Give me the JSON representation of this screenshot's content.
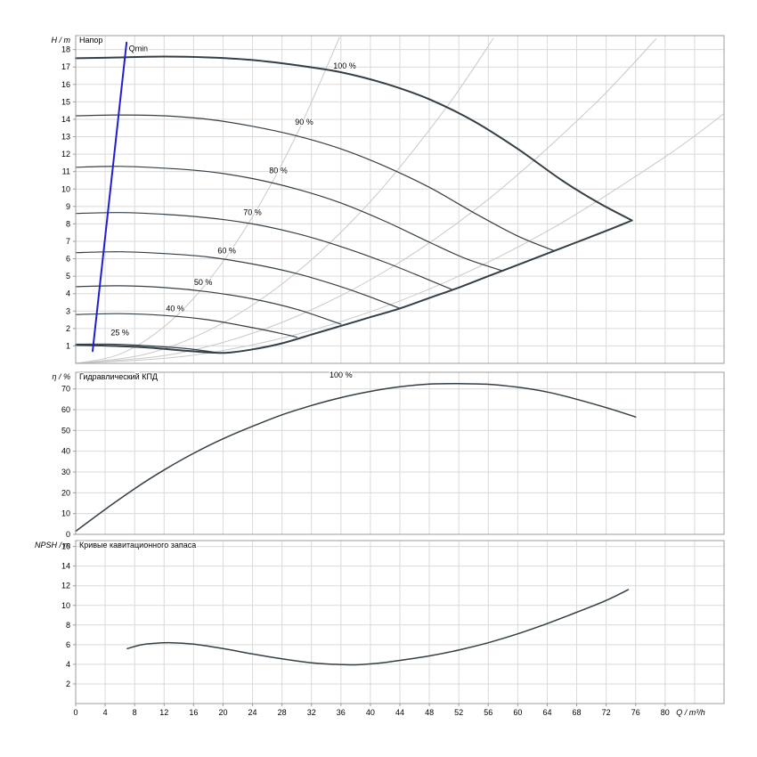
{
  "colors": {
    "curve": "#333f47",
    "grid": "#dadada",
    "frame": "#9b9b9b",
    "guide": "#c9c9c9",
    "qmin": "#1f1fd0",
    "text": "#000000"
  },
  "axis": {
    "xlim": [
      0,
      88
    ],
    "x_ticks": [
      0,
      4,
      8,
      12,
      16,
      20,
      24,
      28,
      32,
      36,
      40,
      44,
      48,
      52,
      56,
      60,
      64,
      68,
      72,
      76,
      80
    ],
    "x_grid_extra": [
      84,
      88
    ],
    "x_label": "Q / m³/h",
    "x_label_pos": 81.5
  },
  "chart_data": [
    {
      "id": "head",
      "type": "line",
      "title": "Напор",
      "ylabel": "H / m",
      "ylim": [
        0,
        18.8
      ],
      "yticks": [
        1,
        2,
        3,
        4,
        5,
        6,
        7,
        8,
        9,
        10,
        11,
        12,
        13,
        14,
        15,
        16,
        17,
        18
      ],
      "guides": [
        [
          [
            0,
            0
          ],
          [
            6,
            0.53
          ],
          [
            12,
            2.1
          ],
          [
            18,
            4.73
          ],
          [
            24,
            8.41
          ],
          [
            30,
            13.14
          ],
          [
            35.8,
            18.7
          ]
        ],
        [
          [
            0,
            0
          ],
          [
            10,
            0.58
          ],
          [
            20,
            2.32
          ],
          [
            30,
            5.22
          ],
          [
            40,
            9.28
          ],
          [
            50,
            14.5
          ],
          [
            56.7,
            18.65
          ]
        ],
        [
          [
            0,
            0
          ],
          [
            14,
            0.59
          ],
          [
            28,
            2.35
          ],
          [
            42,
            5.29
          ],
          [
            56,
            9.41
          ],
          [
            70,
            14.7
          ],
          [
            78.8,
            18.63
          ]
        ],
        [
          [
            0,
            0
          ],
          [
            16,
            0.47
          ],
          [
            32,
            1.89
          ],
          [
            48,
            4.26
          ],
          [
            64,
            7.58
          ],
          [
            80,
            11.84
          ],
          [
            88,
            14.33
          ]
        ]
      ],
      "series": [
        {
          "name": "curve-speed-100",
          "width": 2,
          "points": [
            [
              0,
              17.5
            ],
            [
              6,
              17.55
            ],
            [
              12,
              17.6
            ],
            [
              18,
              17.55
            ],
            [
              24,
              17.4
            ],
            [
              30,
              17.1
            ],
            [
              36,
              16.7
            ],
            [
              42,
              16.05
            ],
            [
              48,
              15.15
            ],
            [
              54,
              13.9
            ],
            [
              60,
              12.3
            ],
            [
              66,
              10.5
            ],
            [
              71,
              9.2
            ],
            [
              75.5,
              8.2
            ]
          ]
        },
        {
          "name": "operating-limit-lower",
          "width": 2,
          "points": [
            [
              0,
              1.05
            ],
            [
              5,
              1.0
            ],
            [
              10,
              0.9
            ],
            [
              15,
              0.72
            ],
            [
              20,
              0.6
            ],
            [
              24,
              0.8
            ],
            [
              28,
              1.15
            ],
            [
              32,
              1.65
            ],
            [
              36,
              2.15
            ],
            [
              40,
              2.65
            ],
            [
              44,
              3.15
            ],
            [
              48,
              3.75
            ],
            [
              52,
              4.35
            ],
            [
              56,
              5.0
            ],
            [
              60,
              5.65
            ],
            [
              64,
              6.3
            ],
            [
              68,
              6.95
            ],
            [
              72,
              7.6
            ],
            [
              75.5,
              8.2
            ]
          ]
        },
        {
          "name": "curve-speed-90",
          "width": 1.2,
          "points": [
            [
              0,
              14.2
            ],
            [
              6,
              14.25
            ],
            [
              12,
              14.2
            ],
            [
              18,
              14.0
            ],
            [
              24,
              13.6
            ],
            [
              30,
              13.05
            ],
            [
              36,
              12.3
            ],
            [
              42,
              11.3
            ],
            [
              48,
              10.1
            ],
            [
              54,
              8.65
            ],
            [
              60,
              7.3
            ],
            [
              65,
              6.45
            ]
          ]
        },
        {
          "name": "curve-speed-80",
          "width": 1.2,
          "points": [
            [
              0,
              11.25
            ],
            [
              6,
              11.3
            ],
            [
              12,
              11.2
            ],
            [
              18,
              11.0
            ],
            [
              24,
              10.6
            ],
            [
              30,
              10.0
            ],
            [
              36,
              9.2
            ],
            [
              42,
              8.15
            ],
            [
              48,
              6.95
            ],
            [
              53,
              6.0
            ],
            [
              58,
              5.3
            ]
          ]
        },
        {
          "name": "curve-speed-70",
          "width": 1.2,
          "points": [
            [
              0,
              8.6
            ],
            [
              6,
              8.65
            ],
            [
              12,
              8.55
            ],
            [
              18,
              8.35
            ],
            [
              24,
              8.0
            ],
            [
              30,
              7.45
            ],
            [
              36,
              6.7
            ],
            [
              42,
              5.8
            ],
            [
              47,
              4.95
            ],
            [
              51,
              4.25
            ]
          ]
        },
        {
          "name": "curve-speed-60",
          "width": 1.2,
          "points": [
            [
              0,
              6.35
            ],
            [
              6,
              6.4
            ],
            [
              12,
              6.3
            ],
            [
              18,
              6.1
            ],
            [
              24,
              5.7
            ],
            [
              30,
              5.15
            ],
            [
              36,
              4.4
            ],
            [
              40,
              3.8
            ],
            [
              44,
              3.15
            ]
          ]
        },
        {
          "name": "curve-speed-50",
          "width": 1.2,
          "points": [
            [
              0,
              4.4
            ],
            [
              6,
              4.45
            ],
            [
              12,
              4.35
            ],
            [
              18,
              4.1
            ],
            [
              24,
              3.7
            ],
            [
              30,
              3.1
            ],
            [
              36,
              2.25
            ]
          ]
        },
        {
          "name": "curve-speed-40",
          "width": 1.2,
          "points": [
            [
              0,
              2.8
            ],
            [
              6,
              2.85
            ],
            [
              12,
              2.75
            ],
            [
              18,
              2.5
            ],
            [
              24,
              2.05
            ],
            [
              28,
              1.7
            ],
            [
              30,
              1.5
            ]
          ]
        },
        {
          "name": "curve-speed-25",
          "width": 1.2,
          "points": [
            [
              0,
              1.1
            ],
            [
              5,
              1.1
            ],
            [
              10,
              1.0
            ],
            [
              15,
              0.85
            ],
            [
              19,
              0.63
            ]
          ]
        },
        {
          "name": "qmin-line",
          "color": "qmin",
          "width": 2,
          "points": [
            [
              2.3,
              0.7
            ],
            [
              6.9,
              18.4
            ]
          ]
        }
      ],
      "labels": [
        {
          "text": "Qmin",
          "x": 7.2,
          "y": 17.9,
          "anchor": "start"
        },
        {
          "text": "100 %",
          "x": 36.5,
          "y": 16.9
        },
        {
          "text": "90 %",
          "x": 31,
          "y": 13.7
        },
        {
          "text": "80 %",
          "x": 27.5,
          "y": 10.9
        },
        {
          "text": "70 %",
          "x": 24,
          "y": 8.5
        },
        {
          "text": "60 %",
          "x": 20.5,
          "y": 6.3
        },
        {
          "text": "50 %",
          "x": 17.3,
          "y": 4.5
        },
        {
          "text": "40 %",
          "x": 13.5,
          "y": 3.0
        },
        {
          "text": "25 %",
          "x": 6,
          "y": 1.6
        }
      ]
    },
    {
      "id": "efficiency",
      "type": "line",
      "title": "Гидравлический КПД",
      "ylabel": "η / %",
      "ylim": [
        0,
        78
      ],
      "yticks": [
        0,
        10,
        20,
        30,
        40,
        50,
        60,
        70
      ],
      "guides": [],
      "series": [
        {
          "name": "efficiency-curve-100",
          "width": 1.5,
          "points": [
            [
              0,
              1.5
            ],
            [
              4,
              12
            ],
            [
              8,
              22
            ],
            [
              12,
              31
            ],
            [
              16,
              39
            ],
            [
              20,
              46
            ],
            [
              24,
              52
            ],
            [
              28,
              57.5
            ],
            [
              32,
              62
            ],
            [
              36,
              65.8
            ],
            [
              40,
              68.8
            ],
            [
              44,
              71
            ],
            [
              48,
              72.3
            ],
            [
              52,
              72.5
            ],
            [
              56,
              72.2
            ],
            [
              60,
              70.8
            ],
            [
              64,
              68.5
            ],
            [
              68,
              65
            ],
            [
              72,
              61
            ],
            [
              76,
              56.5
            ]
          ]
        }
      ],
      "labels": [
        {
          "text": "100 %",
          "x": 36,
          "y": 75.5
        }
      ]
    },
    {
      "id": "npsh",
      "type": "line",
      "title": "Кривые кавитационного запаса",
      "ylabel": "NPSH / m",
      "ylim": [
        0,
        16.6
      ],
      "yticks": [
        2,
        4,
        6,
        8,
        10,
        12,
        14,
        16
      ],
      "guides": [],
      "series": [
        {
          "name": "npsh-curve-100",
          "width": 1.5,
          "points": [
            [
              7,
              5.6
            ],
            [
              9,
              6.0
            ],
            [
              11,
              6.15
            ],
            [
              13,
              6.2
            ],
            [
              16,
              6.05
            ],
            [
              20,
              5.6
            ],
            [
              24,
              5.05
            ],
            [
              28,
              4.55
            ],
            [
              32,
              4.15
            ],
            [
              35,
              4.0
            ],
            [
              38,
              3.95
            ],
            [
              41,
              4.1
            ],
            [
              44,
              4.4
            ],
            [
              48,
              4.85
            ],
            [
              52,
              5.45
            ],
            [
              56,
              6.2
            ],
            [
              60,
              7.1
            ],
            [
              64,
              8.15
            ],
            [
              68,
              9.3
            ],
            [
              72,
              10.5
            ],
            [
              75,
              11.6
            ]
          ]
        }
      ],
      "labels": []
    }
  ]
}
